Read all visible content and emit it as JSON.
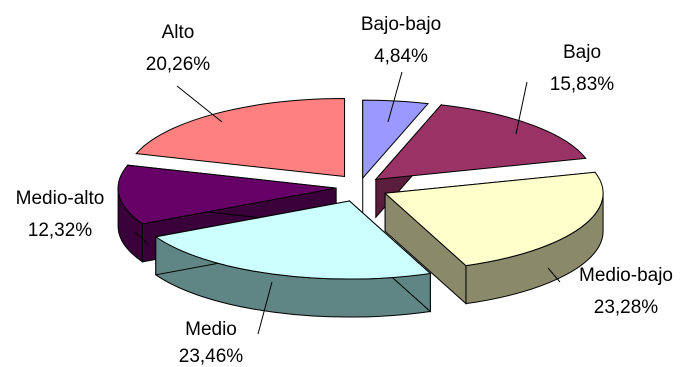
{
  "chart_data": {
    "type": "pie",
    "style": "3d-exploded",
    "title": "",
    "legend": "none",
    "categories": [
      "Bajo-bajo",
      "Bajo",
      "Medio-bajo",
      "Medio",
      "Medio-alto",
      "Alto"
    ],
    "values": [
      4.84,
      15.83,
      23.28,
      23.46,
      12.32,
      20.26
    ],
    "value_labels": [
      "4,84%",
      "15,83%",
      "23,28%",
      "23,46%",
      "12,32%",
      "20,26%"
    ],
    "colors": {
      "top": [
        "#9999FF",
        "#993366",
        "#FFFFCC",
        "#CCFFFF",
        "#660066",
        "#FF8080"
      ],
      "side": [
        "#4A4A8C",
        "#5A1E3C",
        "#8A8A6A",
        "#5F8585",
        "#3A003A",
        "#9A4A4A"
      ]
    }
  }
}
